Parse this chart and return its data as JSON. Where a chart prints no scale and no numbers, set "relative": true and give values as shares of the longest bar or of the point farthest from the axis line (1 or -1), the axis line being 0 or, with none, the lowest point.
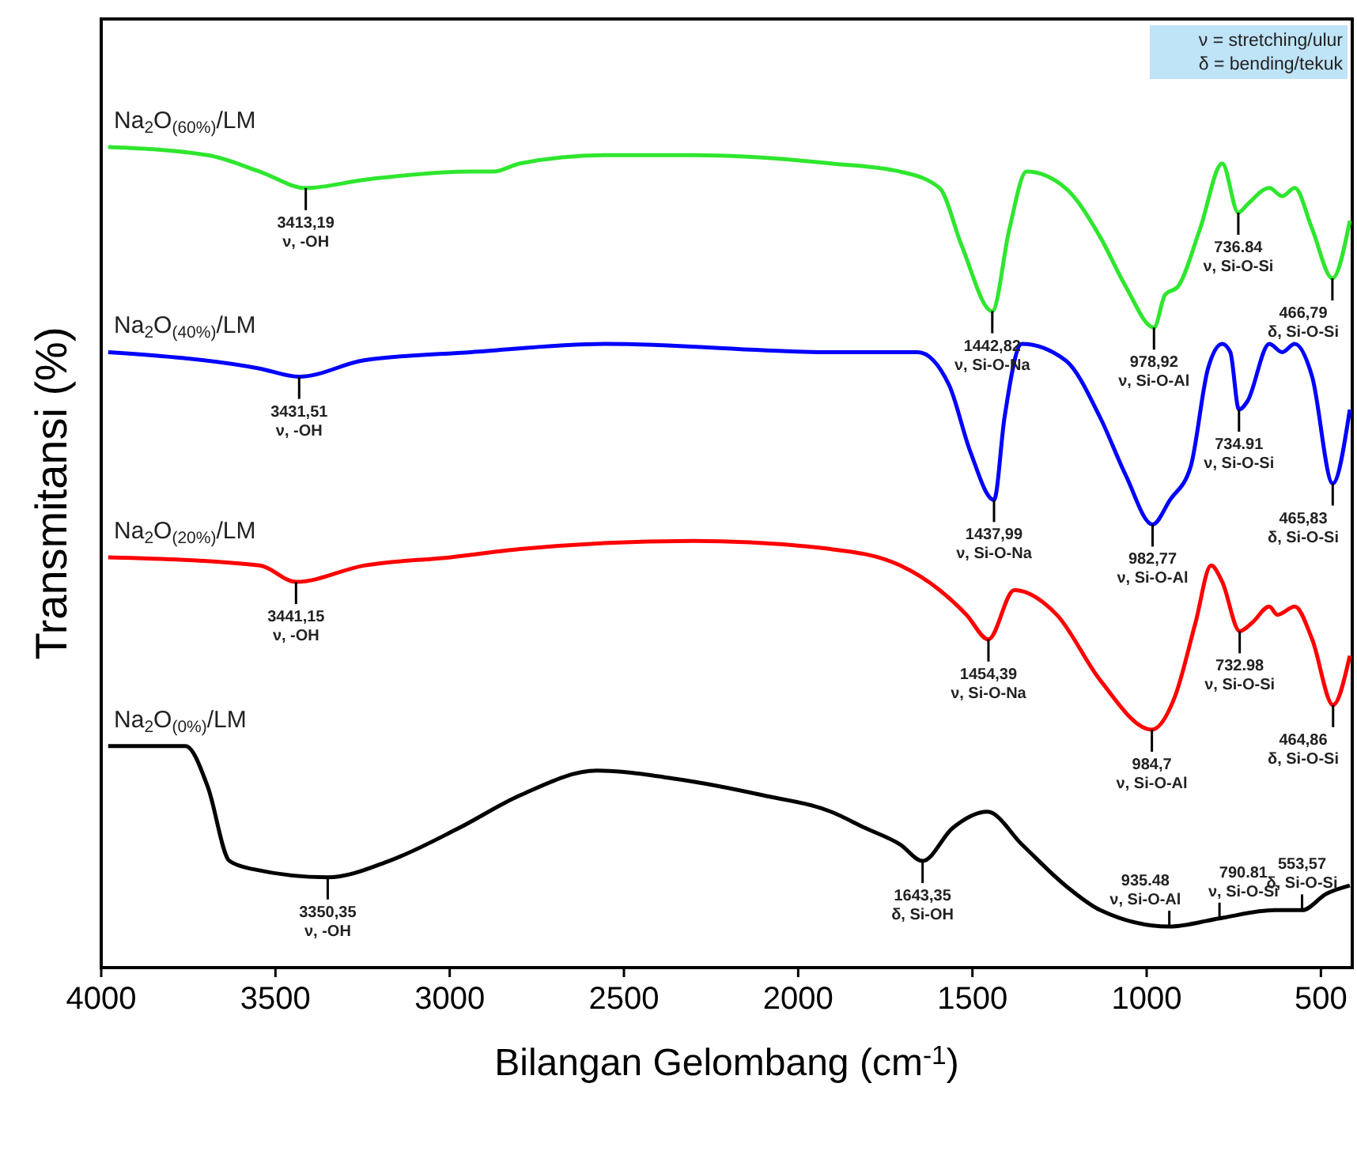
{
  "chart_data": {
    "type": "line",
    "relative": true,
    "xlabel": "Bilangan Gelombang (cm$^{-1}$)",
    "ylabel": "Transmitansi (%)",
    "xlim": [
      4000,
      410
    ],
    "xticks": [
      4000,
      3500,
      3000,
      2500,
      2000,
      1500,
      1000,
      500
    ],
    "grid": false,
    "legend": false,
    "line_style": "solid",
    "series": [
      {
        "name": "Na$_{2}$O$_{(60%)}$/LM",
        "color": "#2ee62e",
        "x": [
          3980,
          3694,
          3545,
          3413,
          3246,
          2938,
          2875,
          2798,
          2549,
          2300,
          1906,
          1707,
          1594,
          1531,
          1443,
          1394,
          1345,
          1233,
          1133,
          1060,
          979,
          947,
          910,
          847,
          783,
          737,
          711,
          648,
          611,
          575,
          525,
          467,
          417
        ],
        "values": [
          1.0,
          0.99,
          0.97,
          0.95,
          0.96,
          0.97,
          0.97,
          0.98,
          0.99,
          0.99,
          0.98,
          0.97,
          0.95,
          0.88,
          0.8,
          0.9,
          0.97,
          0.95,
          0.89,
          0.83,
          0.78,
          0.82,
          0.83,
          0.9,
          0.98,
          0.92,
          0.93,
          0.95,
          0.94,
          0.95,
          0.9,
          0.84,
          0.91
        ]
      },
      {
        "name": "Na$_{2}$O$_{(40%)}$/LM",
        "color": "#0000ff",
        "x": [
          3980,
          3545,
          3432,
          3246,
          2938,
          2549,
          1906,
          1657,
          1567,
          1507,
          1438,
          1408,
          1358,
          1233,
          1133,
          1060,
          983,
          933,
          874,
          824,
          783,
          760,
          735,
          711,
          648,
          611,
          575,
          525,
          466,
          417
        ],
        "values": [
          0.75,
          0.73,
          0.72,
          0.74,
          0.75,
          0.76,
          0.75,
          0.75,
          0.71,
          0.63,
          0.57,
          0.67,
          0.76,
          0.74,
          0.67,
          0.6,
          0.54,
          0.57,
          0.61,
          0.73,
          0.76,
          0.75,
          0.68,
          0.69,
          0.76,
          0.75,
          0.76,
          0.72,
          0.59,
          0.68
        ]
      },
      {
        "name": "Na$_{2}$O$_{(20%)}$/LM",
        "color": "#ff0000",
        "x": [
          3980,
          3545,
          3441,
          3246,
          2997,
          2798,
          2300,
          1906,
          1707,
          1594,
          1517,
          1454,
          1380,
          1258,
          1133,
          985,
          919,
          860,
          815,
          783,
          733,
          698,
          648,
          625,
          575,
          525,
          465,
          417
        ],
        "values": [
          0.5,
          0.49,
          0.47,
          0.49,
          0.5,
          0.51,
          0.52,
          0.51,
          0.49,
          0.46,
          0.43,
          0.4,
          0.46,
          0.43,
          0.35,
          0.29,
          0.33,
          0.42,
          0.49,
          0.47,
          0.41,
          0.42,
          0.44,
          0.43,
          0.44,
          0.4,
          0.32,
          0.38
        ]
      },
      {
        "name": "Na$_{2}$O$_{(0%)}$/LM",
        "color": "#000000",
        "x": [
          3980,
          3758,
          3694,
          3632,
          3565,
          3350,
          3174,
          2974,
          2798,
          2577,
          2351,
          2101,
          1906,
          1807,
          1707,
          1643,
          1557,
          1457,
          1358,
          1233,
          1133,
          935,
          791,
          633,
          554,
          484,
          417
        ],
        "values": [
          0.27,
          0.27,
          0.22,
          0.13,
          0.12,
          0.11,
          0.13,
          0.17,
          0.21,
          0.24,
          0.23,
          0.21,
          0.19,
          0.17,
          0.15,
          0.13,
          0.17,
          0.19,
          0.15,
          0.1,
          0.07,
          0.05,
          0.06,
          0.07,
          0.07,
          0.09,
          0.1
        ]
      }
    ],
    "annotations": [
      "ν = stretching/ulur",
      "δ = bending/tekuk",
      {
        "text": "3413,19\nν, -OH",
        "x": 3413,
        "y": 0.95
      },
      {
        "text": "1442,82\nν, Si-O-Na",
        "x": 1443,
        "y": 0.8
      },
      {
        "text": "978,92\nν, Si-O-Al",
        "x": 979,
        "y": 0.78
      },
      {
        "text": "736.84\nν, Si-O-Si",
        "x": 737,
        "y": 0.92
      },
      {
        "text": "466,79\nδ, Si-O-Si",
        "x": 467,
        "y": 0.84
      },
      {
        "text": "3431,51\nν, -OH",
        "x": 3432,
        "y": 0.72
      },
      {
        "text": "1437,99\nν, Si-O-Na",
        "x": 1438,
        "y": 0.57
      },
      {
        "text": "982,77\nν, Si-O-Al",
        "x": 983,
        "y": 0.54
      },
      {
        "text": "734.91\nν, Si-O-Si",
        "x": 735,
        "y": 0.68
      },
      {
        "text": "465,83\nδ, Si-O-Si",
        "x": 466,
        "y": 0.59
      },
      {
        "text": "3441,15\nν, -OH",
        "x": 3441,
        "y": 0.47
      },
      {
        "text": "1454,39\nν, Si-O-Na",
        "x": 1454,
        "y": 0.4
      },
      {
        "text": "984,7\nν, Si-O-Al",
        "x": 985,
        "y": 0.29
      },
      {
        "text": "732.98\nν, Si-O-Si",
        "x": 733,
        "y": 0.41
      },
      {
        "text": "464,86\nδ, Si-O-Si",
        "x": 465,
        "y": 0.32
      },
      {
        "text": "3350,35\nν, -OH",
        "x": 3350,
        "y": 0.11
      },
      {
        "text": "1643,35\nδ, Si-OH",
        "x": 1643,
        "y": 0.13
      },
      {
        "text": "935.48\nν, Si-O-Al",
        "x": 935,
        "y": 0.05
      },
      {
        "text": "790.81\nν, Si-O-Si",
        "x": 791,
        "y": 0.06
      },
      {
        "text": "553,57\nδ, Si-O-Si",
        "x": 554,
        "y": 0.07
      }
    ]
  }
}
